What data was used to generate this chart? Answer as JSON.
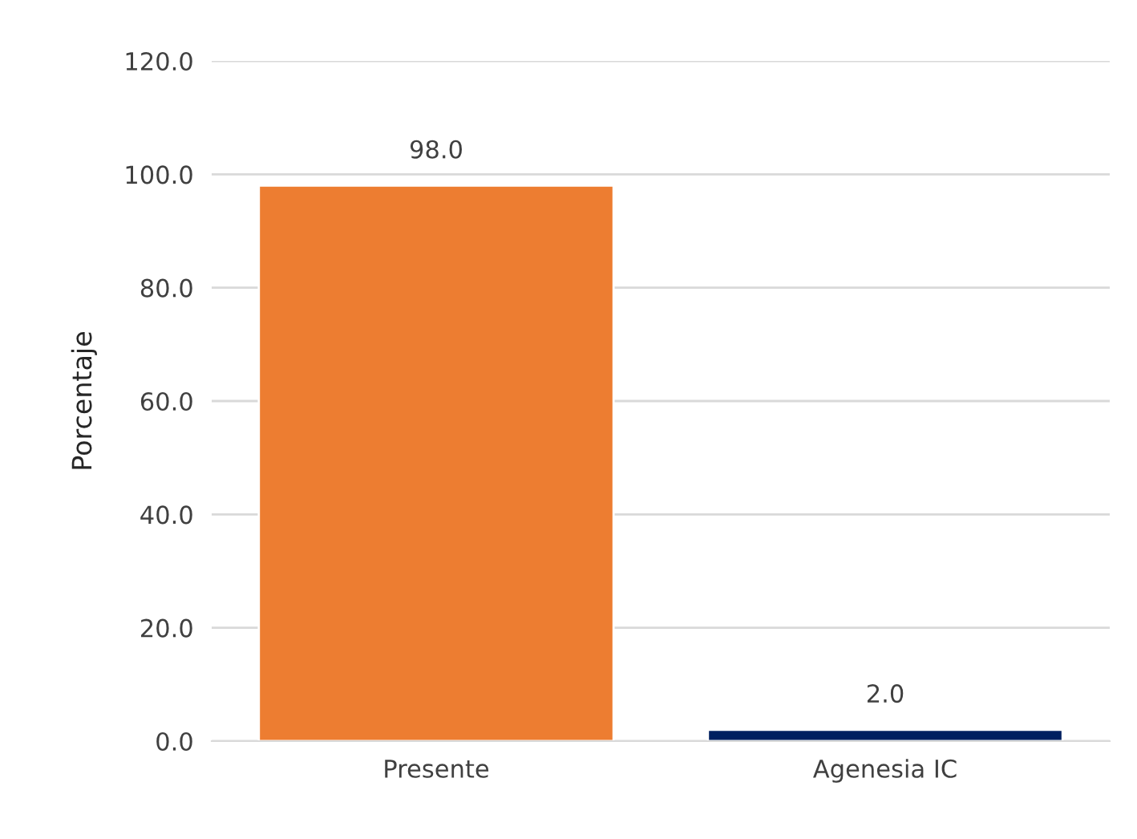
{
  "chart_data": {
    "type": "bar",
    "ylabel": "Porcentaje",
    "categories": [
      "Presente",
      "Agenesia IC"
    ],
    "values": [
      98.0,
      2.0
    ],
    "colors": [
      "#ed7d31",
      "#002060"
    ],
    "value_labels": [
      "98.0",
      "2.0"
    ],
    "ylim": [
      0,
      120
    ],
    "yticks": [
      {
        "value": 0,
        "label": "0.0"
      },
      {
        "value": 20,
        "label": "20.0"
      },
      {
        "value": 40,
        "label": "40.0"
      },
      {
        "value": 60,
        "label": "60.0"
      },
      {
        "value": 80,
        "label": "80.0"
      },
      {
        "value": 100,
        "label": "100.0"
      },
      {
        "value": 120,
        "label": "120.0"
      }
    ],
    "grid": "y",
    "legend": false
  }
}
